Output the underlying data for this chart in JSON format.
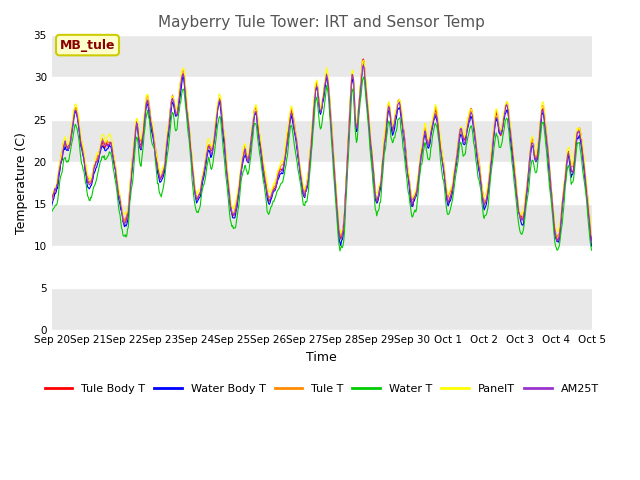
{
  "title": "Mayberry Tule Tower: IRT and Sensor Temp",
  "xlabel": "Time",
  "ylabel": "Temperature (C)",
  "ylim": [
    0,
    35
  ],
  "yticks": [
    0,
    5,
    10,
    15,
    20,
    25,
    30,
    35
  ],
  "annotation_text": "MB_tule",
  "annotation_color": "#8B0000",
  "annotation_bg": "#FFFFCC",
  "annotation_border": "#CCCC00",
  "series_colors": {
    "Tule Body T": "#FF0000",
    "Water Body T": "#0000FF",
    "Tule T": "#FF8C00",
    "Water T": "#00CC00",
    "PanelT": "#FFFF00",
    "AM25T": "#9933CC"
  },
  "fig_bg": "#FFFFFF",
  "plot_bg": "#FFFFFF",
  "band_color": "#E8E8E8",
  "tick_labels": [
    "Sep 20",
    "Sep 21",
    "Sep 22",
    "Sep 23",
    "Sep 24",
    "Sep 25",
    "Sep 26",
    "Sep 27",
    "Sep 28",
    "Sep 29",
    "Sep 30",
    "Oct 1",
    "Oct 2",
    "Oct 3",
    "Oct 4",
    "Oct 5"
  ],
  "legend_fontsize": 8,
  "title_fontsize": 11,
  "axis_fontsize": 9,
  "tick_fontsize": 7.5,
  "n_days": 15,
  "points_per_day": 48
}
